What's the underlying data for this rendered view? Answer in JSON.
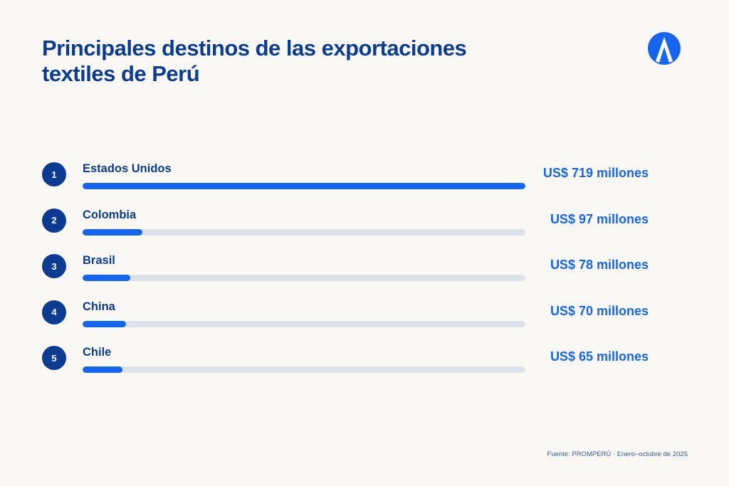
{
  "title": {
    "line1": "Principales destinos de las exportaciones",
    "line2": "textiles de Perú"
  },
  "logo": {
    "icon": "letter-a-logo-icon",
    "color": "#1565f0"
  },
  "colors": {
    "title": "#0c3c91",
    "badge": "#0c3c91",
    "bar_fill": "#1565f0",
    "bar_track": "#dde2ea",
    "value": "#1565f0",
    "background": "#f9f8f5"
  },
  "chart_data": {
    "type": "bar",
    "orientation": "horizontal",
    "title": "Principales destinos de las exportaciones textiles de Perú",
    "unit": "US$ millones",
    "xlim": [
      0,
      719
    ],
    "categories": [
      "Estados Unidos",
      "Colombia",
      "Brasil",
      "China",
      "Chile"
    ],
    "values": [
      719,
      97,
      78,
      70,
      65
    ],
    "ranks": [
      "1",
      "2",
      "3",
      "4",
      "5"
    ],
    "value_labels": [
      "US$ 719 millones",
      "US$ 97 millones",
      "US$ 78 millones",
      "US$ 70 millones",
      "US$ 65 millones"
    ]
  },
  "source": "Fuente: PROMPERÚ · Enero–octubre de 2025"
}
